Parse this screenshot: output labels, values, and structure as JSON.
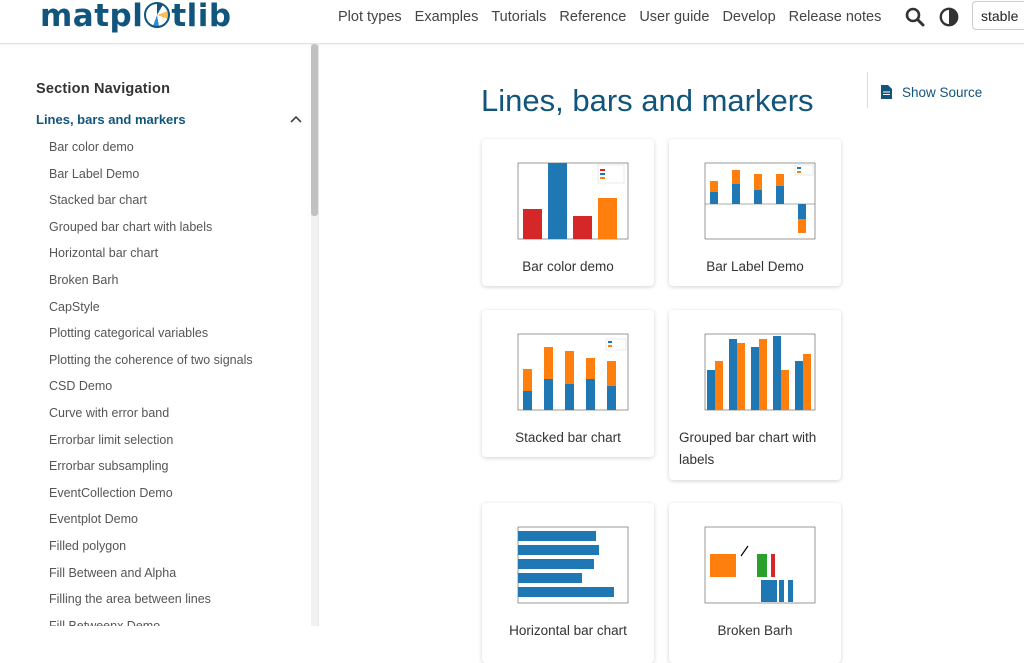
{
  "header": {
    "logo_text": "matplotlib",
    "nav": [
      "Plot types",
      "Examples",
      "Tutorials",
      "Reference",
      "User guide",
      "Develop",
      "Release notes"
    ],
    "version": "stable",
    "icons": [
      "search-icon",
      "theme-toggle-icon"
    ]
  },
  "sidebar": {
    "section_title": "Section Navigation",
    "active": "Lines, bars and markers",
    "items": [
      "Bar color demo",
      "Bar Label Demo",
      "Stacked bar chart",
      "Grouped bar chart with labels",
      "Horizontal bar chart",
      "Broken Barh",
      "CapStyle",
      "Plotting categorical variables",
      "Plotting the coherence of two signals",
      "CSD Demo",
      "Curve with error band",
      "Errorbar limit selection",
      "Errorbar subsampling",
      "EventCollection Demo",
      "Eventplot Demo",
      "Filled polygon",
      "Fill Between and Alpha",
      "Filling the area between lines",
      "Fill Betweenx Demo"
    ]
  },
  "main": {
    "title": "Lines, bars and markers",
    "show_source": "Show Source",
    "cards": [
      {
        "label": "Bar color demo"
      },
      {
        "label": "Bar Label Demo"
      },
      {
        "label": "Stacked bar chart"
      },
      {
        "label": "Grouped bar chart with labels"
      },
      {
        "label": "Horizontal bar chart"
      },
      {
        "label": "Broken Barh"
      }
    ]
  },
  "colors": {
    "brand": "#11557c",
    "blue": "#1f77b4",
    "orange": "#ff7f0e",
    "red": "#d62728",
    "green": "#2ca02c"
  }
}
